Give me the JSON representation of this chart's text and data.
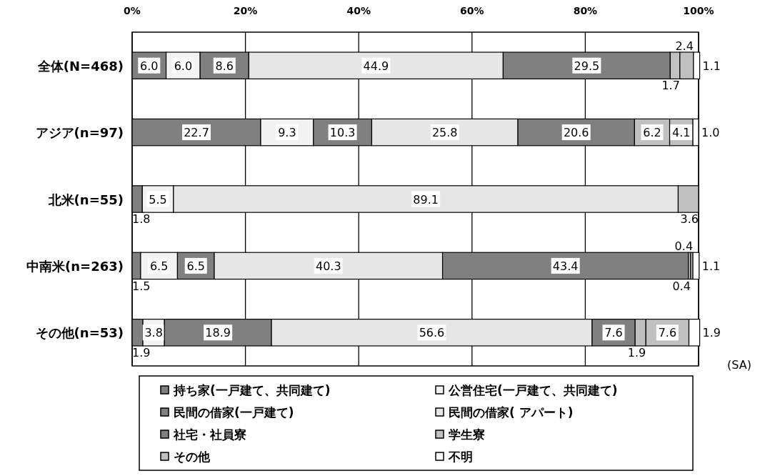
{
  "chart_data": {
    "type": "bar",
    "orientation": "horizontal",
    "stacked": true,
    "categories": [
      "全体(N=468)",
      "アジア(n=97)",
      "北米(n=55)",
      "中南米(n=263)",
      "その他(n=53)"
    ],
    "series": [
      {
        "name": "持ち家(一戸建て、共同建て)",
        "color": "#808080",
        "values": [
          6.0,
          22.7,
          1.8,
          1.5,
          1.9
        ],
        "value_labels": [
          "6.0",
          "22.7",
          "1.8",
          "1.5",
          "1.9"
        ]
      },
      {
        "name": "公営住宅(一戸建て、共同建て)",
        "color": "#f2f2f2",
        "values": [
          6.0,
          9.3,
          5.5,
          6.5,
          3.8
        ],
        "value_labels": [
          "6.0",
          "9.3",
          "5.5",
          "6.5",
          "3.8"
        ]
      },
      {
        "name": "民間の借家(一戸建て)",
        "color": "#808080",
        "values": [
          8.6,
          10.3,
          null,
          6.5,
          18.9
        ],
        "value_labels": [
          "8.6",
          "10.3",
          null,
          "6.5",
          "18.9"
        ]
      },
      {
        "name": "民間の借家( アパート)",
        "color": "#e6e6e6",
        "values": [
          44.9,
          25.8,
          89.1,
          40.3,
          56.6
        ],
        "value_labels": [
          "44.9",
          "25.8",
          "89.1",
          "40.3",
          "56.6"
        ]
      },
      {
        "name": "社宅・社員寮",
        "color": "#808080",
        "values": [
          29.5,
          20.6,
          null,
          43.4,
          7.6
        ],
        "value_labels": [
          "29.5",
          "20.6",
          null,
          "43.4",
          "7.6"
        ]
      },
      {
        "name": "学生寮",
        "color": "#c0c0c0",
        "values": [
          1.7,
          6.2,
          null,
          0.4,
          1.9
        ],
        "value_labels": [
          "1.7",
          "6.2",
          null,
          "0.4",
          "1.9"
        ]
      },
      {
        "name": "その他",
        "color": "#c0c0c0",
        "values": [
          2.4,
          4.1,
          3.6,
          0.4,
          7.6
        ],
        "value_labels": [
          "2.4",
          "4.1",
          "3.6",
          "0.4",
          "7.6"
        ]
      },
      {
        "name": "不明",
        "color": "#ffffff",
        "values": [
          1.1,
          1.0,
          null,
          1.1,
          1.9
        ],
        "value_labels": [
          "1.1",
          "1.0",
          null,
          "1.1",
          "1.9"
        ]
      }
    ],
    "xlim": [
      0,
      100
    ],
    "xticks": [
      {
        "value": 0,
        "label": "0%"
      },
      {
        "value": 20,
        "label": "20%"
      },
      {
        "value": 40,
        "label": "40%"
      },
      {
        "value": 60,
        "label": "60%"
      },
      {
        "value": 80,
        "label": "80%"
      },
      {
        "value": 100,
        "label": "100%"
      }
    ],
    "grid": "x",
    "legend": "bottom",
    "annotations": [
      "(SA)"
    ]
  }
}
